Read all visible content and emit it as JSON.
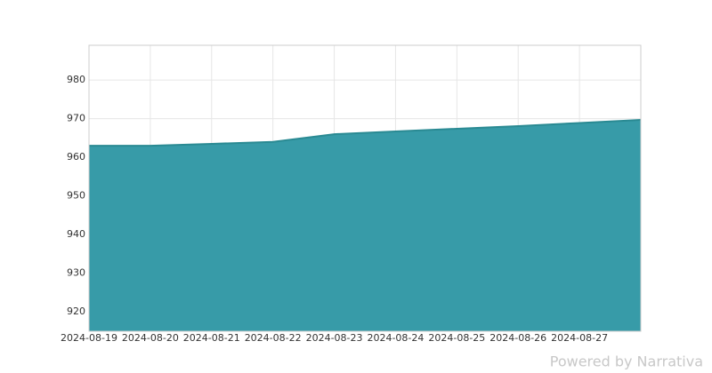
{
  "chart_data": {
    "type": "area",
    "x": [
      "2024-08-19",
      "2024-08-20",
      "2024-08-21",
      "2024-08-22",
      "2024-08-23",
      "2024-08-24",
      "2024-08-25",
      "2024-08-26",
      "2024-08-27",
      "2024-08-28"
    ],
    "values": [
      963,
      963,
      963.5,
      964,
      966,
      966.7,
      967.4,
      968.1,
      968.9,
      969.7
    ],
    "color": "#3399a6",
    "line_color": "#2a8a93",
    "xlim": [
      "2024-08-19",
      "2024-08-28"
    ],
    "xticks": [
      "2024-08-19",
      "2024-08-20",
      "2024-08-21",
      "2024-08-22",
      "2024-08-23",
      "2024-08-24",
      "2024-08-25",
      "2024-08-26",
      "2024-08-27"
    ],
    "ylim": [
      915,
      989
    ],
    "yticks": [
      920,
      930,
      940,
      950,
      960,
      970,
      980
    ],
    "grid": true,
    "watermark": "Powered by Narrativa"
  }
}
